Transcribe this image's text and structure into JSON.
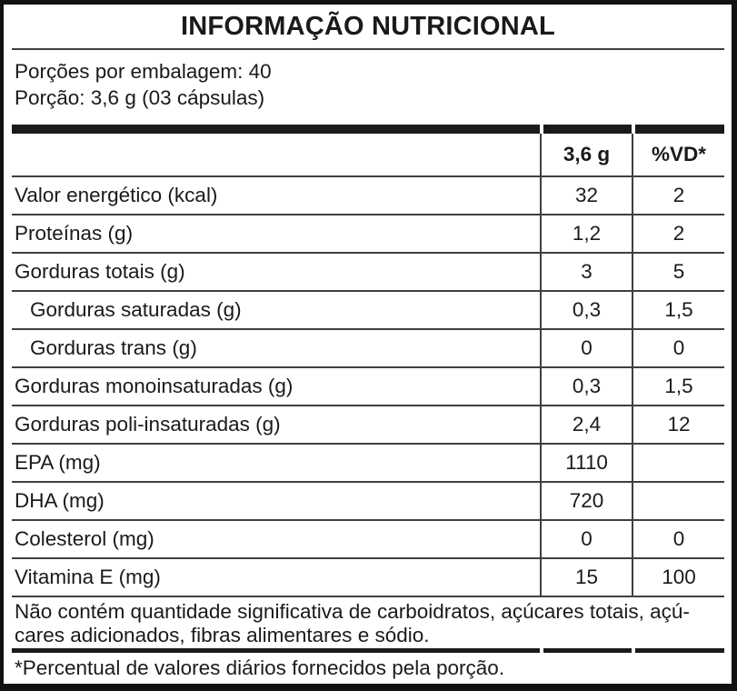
{
  "title": "INFORMAÇÃO NUTRICIONAL",
  "serving": {
    "servings_per_package": "Porções por embalagem: 40",
    "serving_size": "Porção: 3,6 g (03 cápsulas)"
  },
  "table": {
    "columns": {
      "amount": "3,6 g",
      "dv": "%VD*"
    },
    "rows": [
      {
        "label": "Valor energético (kcal)",
        "amount": "32",
        "dv": "2"
      },
      {
        "label": "Proteínas (g)",
        "amount": "1,2",
        "dv": "2"
      },
      {
        "label": "Gorduras totais (g)",
        "amount": "3",
        "dv": "5"
      },
      {
        "label": "Gorduras saturadas (g)",
        "amount": "0,3",
        "dv": "1,5"
      },
      {
        "label": "Gorduras trans (g)",
        "amount": "0",
        "dv": "0"
      },
      {
        "label": "Gorduras monoinsaturadas (g)",
        "amount": "0,3",
        "dv": "1,5"
      },
      {
        "label": "Gorduras poli-insaturadas (g)",
        "amount": "2,4",
        "dv": "12"
      },
      {
        "label": "EPA (mg)",
        "amount": "1110",
        "dv": ""
      },
      {
        "label": "DHA (mg)",
        "amount": "720",
        "dv": ""
      },
      {
        "label": "Colesterol (mg)",
        "amount": "0",
        "dv": "0"
      },
      {
        "label": "Vitamina E (mg)",
        "amount": "15",
        "dv": "100"
      }
    ]
  },
  "notes": {
    "no_significant_line1": "Não contém quantidade significativa de carboidratos, açúcares totais, açú-",
    "no_significant_line2": "cares adicionados, fibras alimentares e sódio.",
    "dv_footnote": "*Percentual de valores diários fornecidos pela porção."
  },
  "colors": {
    "text": "#1a1a1a",
    "line": "#3f3f3f",
    "background": "#ffffff"
  }
}
